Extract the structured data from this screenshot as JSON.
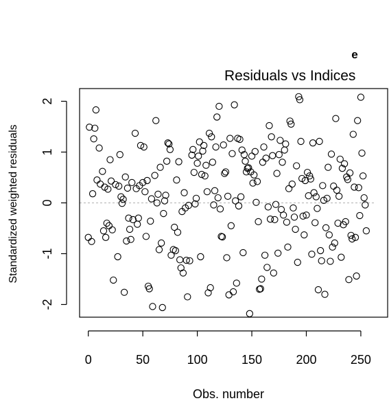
{
  "chart_data": {
    "type": "scatter",
    "panel_label": "e",
    "title": "Residuals vs Indices",
    "xlabel": "Obs. number",
    "ylabel": "Standardized weighted residuals",
    "xlim": [
      -8,
      262
    ],
    "ylim": [
      -2.25,
      2.25
    ],
    "x_ticks": [
      0,
      50,
      100,
      150,
      200,
      250
    ],
    "y_ticks": [
      -2,
      -1,
      0,
      1,
      2
    ],
    "reference_line": 0,
    "grid": false,
    "legend": "none",
    "marker": "open-circle",
    "colors": {
      "points": "#000000",
      "reference_line": "#bdbdbd",
      "frame": "#000000"
    },
    "points": [
      [
        0,
        -0.68
      ],
      [
        1,
        1.49
      ],
      [
        3,
        -0.76
      ],
      [
        4,
        0.18
      ],
      [
        5,
        1.26
      ],
      [
        6,
        1.47
      ],
      [
        7,
        1.83
      ],
      [
        8,
        0.45
      ],
      [
        10,
        1.08
      ],
      [
        11,
        0.37
      ],
      [
        13,
        0.62
      ],
      [
        14,
        -0.55
      ],
      [
        15,
        0.31
      ],
      [
        16,
        -0.68
      ],
      [
        17,
        -0.4
      ],
      [
        18,
        0.27
      ],
      [
        19,
        -0.45
      ],
      [
        20,
        0.85
      ],
      [
        21,
        0.43
      ],
      [
        22,
        -0.53
      ],
      [
        23,
        -1.52
      ],
      [
        25,
        0.36
      ],
      [
        27,
        -1.06
      ],
      [
        28,
        0.33
      ],
      [
        29,
        0.95
      ],
      [
        30,
        0.12
      ],
      [
        31,
        -0.01
      ],
      [
        32,
        0.07
      ],
      [
        33,
        -1.76
      ],
      [
        34,
        0.51
      ],
      [
        35,
        -0.75
      ],
      [
        36,
        0.29
      ],
      [
        37,
        -0.3
      ],
      [
        38,
        -0.52
      ],
      [
        39,
        -0.72
      ],
      [
        40,
        0.4
      ],
      [
        41,
        -0.33
      ],
      [
        43,
        1.37
      ],
      [
        44,
        0.28
      ],
      [
        45,
        -0.42
      ],
      [
        46,
        -0.3
      ],
      [
        47,
        0.34
      ],
      [
        48,
        1.13
      ],
      [
        50,
        0.4
      ],
      [
        51,
        1.1
      ],
      [
        52,
        0.22
      ],
      [
        53,
        -0.66
      ],
      [
        54,
        0.44
      ],
      [
        55,
        -1.64
      ],
      [
        56,
        -1.69
      ],
      [
        57,
        -0.36
      ],
      [
        58,
        0.08
      ],
      [
        59,
        -2.04
      ],
      [
        61,
        0.54
      ],
      [
        62,
        1.62
      ],
      [
        63,
        0.0
      ],
      [
        64,
        0.17
      ],
      [
        65,
        -0.92
      ],
      [
        66,
        0.7
      ],
      [
        67,
        -0.79
      ],
      [
        68,
        -2.06
      ],
      [
        69,
        -0.21
      ],
      [
        70,
        0.04
      ],
      [
        71,
        0.15
      ],
      [
        72,
        0.82
      ],
      [
        73,
        1.18
      ],
      [
        74,
        1.16
      ],
      [
        75,
        1.05
      ],
      [
        76,
        -1.03
      ],
      [
        78,
        -0.92
      ],
      [
        79,
        -0.48
      ],
      [
        80,
        -0.94
      ],
      [
        81,
        0.45
      ],
      [
        82,
        -0.58
      ],
      [
        83,
        0.81
      ],
      [
        84,
        -1.12
      ],
      [
        85,
        -1.28
      ],
      [
        86,
        -0.17
      ],
      [
        87,
        -1.38
      ],
      [
        88,
        0.2
      ],
      [
        89,
        -0.1
      ],
      [
        90,
        -1.13
      ],
      [
        91,
        -1.85
      ],
      [
        92,
        -0.05
      ],
      [
        93,
        -1.14
      ],
      [
        95,
        0.94
      ],
      [
        96,
        1.05
      ],
      [
        97,
        0.6
      ],
      [
        98,
        -0.02
      ],
      [
        99,
        0.09
      ],
      [
        100,
        0.78
      ],
      [
        101,
        0.92
      ],
      [
        102,
        1.2
      ],
      [
        103,
        -1.06
      ],
      [
        104,
        0.56
      ],
      [
        105,
        1.02
      ],
      [
        106,
        1.13
      ],
      [
        107,
        0.53
      ],
      [
        108,
        0.74
      ],
      [
        109,
        0.22
      ],
      [
        110,
        -1.77
      ],
      [
        111,
        1.37
      ],
      [
        112,
        -1.67
      ],
      [
        113,
        1.3
      ],
      [
        114,
        0.8
      ],
      [
        115,
        -0.04
      ],
      [
        116,
        0.24
      ],
      [
        117,
        1.1
      ],
      [
        118,
        1.69
      ],
      [
        119,
        0.1
      ],
      [
        120,
        1.9
      ],
      [
        121,
        -0.12
      ],
      [
        122,
        -0.66
      ],
      [
        123,
        -0.67
      ],
      [
        124,
        1.14
      ],
      [
        125,
        0.58
      ],
      [
        126,
        0.61
      ],
      [
        127,
        -1.08
      ],
      [
        128,
        0.13
      ],
      [
        129,
        -1.81
      ],
      [
        130,
        1.27
      ],
      [
        131,
        -0.45
      ],
      [
        132,
        0.97
      ],
      [
        133,
        -1.75
      ],
      [
        134,
        1.93
      ],
      [
        135,
        0.04
      ],
      [
        136,
        -1.58
      ],
      [
        137,
        1.27
      ],
      [
        138,
        -0.06
      ],
      [
        139,
        1.25
      ],
      [
        140,
        0.12
      ],
      [
        141,
        1.04
      ],
      [
        142,
        -0.98
      ],
      [
        143,
        0.95
      ],
      [
        144,
        0.82
      ],
      [
        145,
        0.61
      ],
      [
        146,
        0.68
      ],
      [
        147,
        0.69
      ],
      [
        148,
        -2.18
      ],
      [
        149,
        0.61
      ],
      [
        150,
        0.92
      ],
      [
        151,
        0.39
      ],
      [
        152,
        0.55
      ],
      [
        153,
        1.01
      ],
      [
        154,
        0.01
      ],
      [
        155,
        0.42
      ],
      [
        156,
        -0.37
      ],
      [
        157,
        -1.7
      ],
      [
        158,
        -1.69
      ],
      [
        159,
        -1.5
      ],
      [
        160,
        0.8
      ],
      [
        161,
        1.1
      ],
      [
        162,
        -1.03
      ],
      [
        163,
        0.88
      ],
      [
        164,
        -1.27
      ],
      [
        165,
        -0.08
      ],
      [
        166,
        1.52
      ],
      [
        167,
        -0.32
      ],
      [
        168,
        1.3
      ],
      [
        169,
        0.93
      ],
      [
        170,
        -1.38
      ],
      [
        171,
        -0.33
      ],
      [
        172,
        -0.03
      ],
      [
        173,
        0.58
      ],
      [
        174,
        -0.99
      ],
      [
        175,
        0.95
      ],
      [
        176,
        1.23
      ],
      [
        177,
        -0.13
      ],
      [
        178,
        0.8
      ],
      [
        179,
        -0.24
      ],
      [
        180,
        1.04
      ],
      [
        181,
        1.16
      ],
      [
        182,
        -0.38
      ],
      [
        183,
        -0.87
      ],
      [
        184,
        0.28
      ],
      [
        185,
        1.61
      ],
      [
        186,
        1.55
      ],
      [
        187,
        0.37
      ],
      [
        188,
        -0.1
      ],
      [
        189,
        -0.28
      ],
      [
        190,
        -0.52
      ],
      [
        191,
        0.73
      ],
      [
        192,
        -1.17
      ],
      [
        193,
        2.09
      ],
      [
        194,
        2.03
      ],
      [
        195,
        1.21
      ],
      [
        196,
        0.48
      ],
      [
        197,
        -0.26
      ],
      [
        198,
        -0.63
      ],
      [
        199,
        0.44
      ],
      [
        200,
        -0.24
      ],
      [
        201,
        0.6
      ],
      [
        202,
        0.14
      ],
      [
        203,
        0.53
      ],
      [
        204,
        0.47
      ],
      [
        205,
        -1.01
      ],
      [
        206,
        1.18
      ],
      [
        207,
        0.2
      ],
      [
        208,
        -0.39
      ],
      [
        209,
        0.12
      ],
      [
        210,
        -0.11
      ],
      [
        211,
        -1.71
      ],
      [
        212,
        1.21
      ],
      [
        213,
        -0.94
      ],
      [
        214,
        -1.14
      ],
      [
        215,
        0.34
      ],
      [
        216,
        0.05
      ],
      [
        217,
        -1.8
      ],
      [
        218,
        -0.49
      ],
      [
        219,
        0.09
      ],
      [
        220,
        0.7
      ],
      [
        221,
        -0.63
      ],
      [
        222,
        -1.15
      ],
      [
        223,
        0.96
      ],
      [
        224,
        -0.87
      ],
      [
        225,
        0.33
      ],
      [
        226,
        -0.79
      ],
      [
        227,
        1.66
      ],
      [
        228,
        0.25
      ],
      [
        229,
        -0.4
      ],
      [
        230,
        0.13
      ],
      [
        231,
        0.86
      ],
      [
        232,
        -1.07
      ],
      [
        233,
        0.68
      ],
      [
        234,
        -0.43
      ],
      [
        235,
        0.77
      ],
      [
        236,
        -0.37
      ],
      [
        237,
        0.51
      ],
      [
        238,
        0.46
      ],
      [
        239,
        -1.51
      ],
      [
        240,
        0.59
      ],
      [
        241,
        -0.64
      ],
      [
        242,
        -0.71
      ],
      [
        243,
        1.35
      ],
      [
        244,
        0.31
      ],
      [
        245,
        -0.68
      ],
      [
        246,
        -1.44
      ],
      [
        247,
        1.62
      ],
      [
        248,
        0.3
      ],
      [
        249,
        -0.25
      ],
      [
        250,
        2.08
      ],
      [
        251,
        0.98
      ],
      [
        252,
        0.53
      ],
      [
        253,
        0.1
      ],
      [
        254,
        -0.04
      ],
      [
        255,
        -0.55
      ]
    ]
  }
}
